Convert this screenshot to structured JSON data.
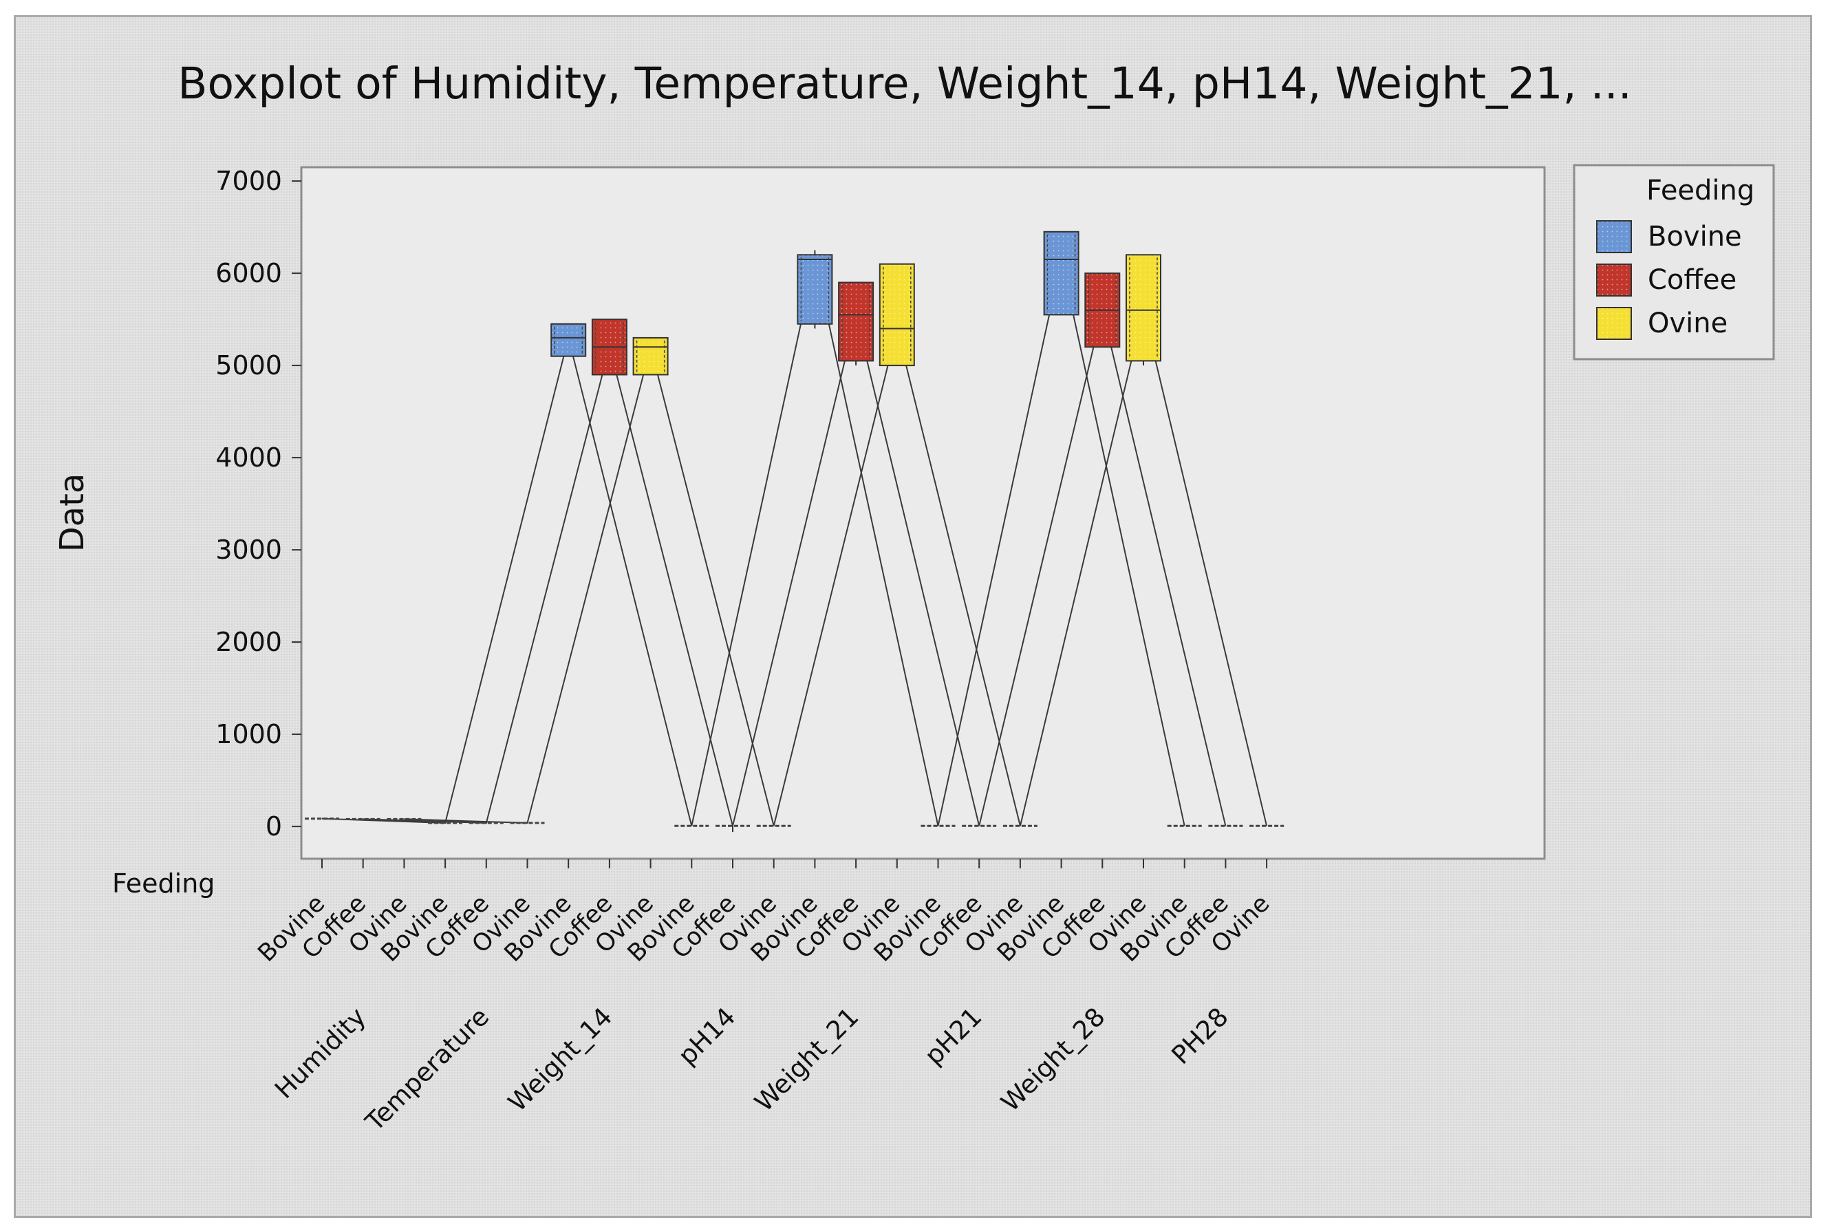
{
  "chart_data": {
    "type": "boxplot",
    "title": "Boxplot of Humidity, Temperature, Weight_14, pH14, Weight_21, ...",
    "ylabel": "Data",
    "xlabel": "",
    "x_group_label": "Feeding",
    "ylim": [
      -350,
      7150
    ],
    "yticks": [
      0,
      1000,
      2000,
      3000,
      4000,
      5000,
      6000,
      7000
    ],
    "tick_labels": [
      "0",
      "1000",
      "2000",
      "3000",
      "4000",
      "5000",
      "6000",
      "7000"
    ],
    "legend": {
      "title": "Feeding",
      "entries": [
        "Bovine",
        "Coffee",
        "Ovine"
      ],
      "position": "right"
    },
    "colors": {
      "Bovine": "#6b96d6",
      "Coffee": "#c1352a",
      "Ovine": "#f5df33",
      "line": "#3a3a3a",
      "plot_bg": "#ebebeb"
    },
    "groups": [
      {
        "name": "Humidity",
        "label": "Humidity",
        "boxes": [
          {
            "feeding": "Bovine",
            "min": 80,
            "q1": 82,
            "median": 85,
            "q3": 88,
            "max": 92
          },
          {
            "feeding": "Coffee",
            "min": 75,
            "q1": 78,
            "median": 80,
            "q3": 83,
            "max": 86
          },
          {
            "feeding": "Ovine",
            "min": 75,
            "q1": 78,
            "median": 80,
            "q3": 83,
            "max": 86
          }
        ]
      },
      {
        "name": "Temperature",
        "label": "Temperature",
        "boxes": [
          {
            "feeding": "Bovine",
            "min": 35,
            "q1": 37,
            "median": 38,
            "q3": 40,
            "max": 42
          },
          {
            "feeding": "Coffee",
            "min": 35,
            "q1": 37,
            "median": 38,
            "q3": 40,
            "max": 42
          },
          {
            "feeding": "Ovine",
            "min": 35,
            "q1": 37,
            "median": 38,
            "q3": 40,
            "max": 42
          }
        ]
      },
      {
        "name": "Weight_14",
        "label": "Weight_14",
        "boxes": [
          {
            "feeding": "Bovine",
            "min": 5100,
            "q1": 5100,
            "median": 5300,
            "q3": 5450,
            "max": 5450
          },
          {
            "feeding": "Coffee",
            "min": 4900,
            "q1": 4900,
            "median": 5200,
            "q3": 5500,
            "max": 5500
          },
          {
            "feeding": "Ovine",
            "min": 4900,
            "q1": 4900,
            "median": 5200,
            "q3": 5300,
            "max": 5300
          }
        ]
      },
      {
        "name": "pH14",
        "label": "pH14",
        "boxes": [
          {
            "feeding": "Bovine",
            "min": 5,
            "q1": 5,
            "median": 6,
            "q3": 6,
            "max": 7
          },
          {
            "feeding": "Coffee",
            "min": -60,
            "q1": 5,
            "median": 6,
            "q3": 6,
            "max": 7
          },
          {
            "feeding": "Ovine",
            "min": 5,
            "q1": 5,
            "median": 6,
            "q3": 6,
            "max": 7
          }
        ]
      },
      {
        "name": "Weight_21",
        "label": "Weight_21",
        "boxes": [
          {
            "feeding": "Bovine",
            "min": 5400,
            "q1": 5450,
            "median": 6150,
            "q3": 6200,
            "max": 6250
          },
          {
            "feeding": "Coffee",
            "min": 5000,
            "q1": 5050,
            "median": 5550,
            "q3": 5900,
            "max": 5900
          },
          {
            "feeding": "Ovine",
            "min": 5000,
            "q1": 5000,
            "median": 5400,
            "q3": 6100,
            "max": 6100
          }
        ]
      },
      {
        "name": "pH21",
        "label": "pH21",
        "boxes": [
          {
            "feeding": "Bovine",
            "min": 5,
            "q1": 5,
            "median": 6,
            "q3": 6,
            "max": 7
          },
          {
            "feeding": "Coffee",
            "min": 5,
            "q1": 5,
            "median": 6,
            "q3": 6,
            "max": 7
          },
          {
            "feeding": "Ovine",
            "min": 5,
            "q1": 5,
            "median": 6,
            "q3": 6,
            "max": 7
          }
        ]
      },
      {
        "name": "Weight_28",
        "label": "Weight_28",
        "boxes": [
          {
            "feeding": "Bovine",
            "min": 5550,
            "q1": 5550,
            "median": 6150,
            "q3": 6450,
            "max": 6450
          },
          {
            "feeding": "Coffee",
            "min": 5200,
            "q1": 5200,
            "median": 5600,
            "q3": 6000,
            "max": 6000
          },
          {
            "feeding": "Ovine",
            "min": 5000,
            "q1": 5050,
            "median": 5600,
            "q3": 6200,
            "max": 6200
          }
        ]
      },
      {
        "name": "PH28",
        "label": "PH28",
        "boxes": [
          {
            "feeding": "Bovine",
            "min": 5,
            "q1": 5,
            "median": 6,
            "q3": 6,
            "max": 7
          },
          {
            "feeding": "Coffee",
            "min": 5,
            "q1": 5,
            "median": 6,
            "q3": 6,
            "max": 7
          },
          {
            "feeding": "Ovine",
            "min": 5,
            "q1": 5,
            "median": 6,
            "q3": 6,
            "max": 7
          }
        ]
      }
    ]
  }
}
